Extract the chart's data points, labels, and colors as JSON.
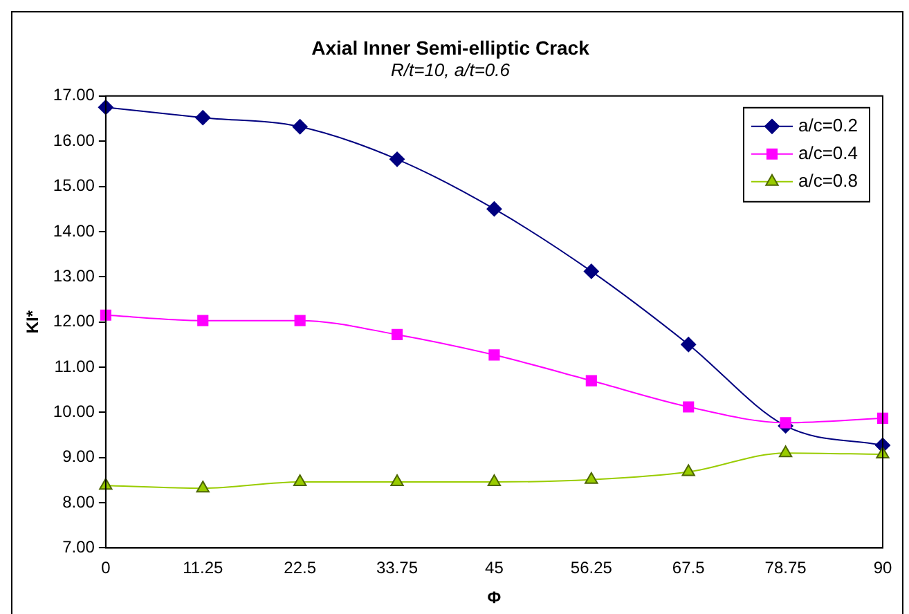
{
  "chart_data": {
    "type": "line",
    "title": "Axial Inner Semi-elliptic Crack",
    "subtitle": "R/t=10, a/t=0.6",
    "xlabel": "Φ",
    "ylabel": "KI*",
    "categories": [
      "0",
      "11.25",
      "22.5",
      "33.75",
      "45",
      "56.25",
      "67.5",
      "78.75",
      "90"
    ],
    "series": [
      {
        "name": "a/c=0.2",
        "color": "#000080",
        "marker": "diamond",
        "values": [
          16.75,
          16.52,
          16.32,
          15.6,
          14.5,
          13.12,
          11.5,
          9.7,
          9.27
        ]
      },
      {
        "name": "a/c=0.4",
        "color": "#ff00ff",
        "marker": "square",
        "values": [
          12.15,
          12.03,
          12.03,
          11.72,
          11.27,
          10.7,
          10.12,
          9.77,
          9.87
        ]
      },
      {
        "name": "a/c=0.8",
        "color": "#99cc00",
        "marker": "triangle",
        "values": [
          8.38,
          8.32,
          8.46,
          8.46,
          8.46,
          8.51,
          8.68,
          9.1,
          9.07
        ]
      }
    ],
    "ylim": [
      7,
      17
    ],
    "yticks": [
      {
        "value": 7,
        "label": "7.00"
      },
      {
        "value": 8,
        "label": "8.00"
      },
      {
        "value": 9,
        "label": "9.00"
      },
      {
        "value": 10,
        "label": "10.00"
      },
      {
        "value": 11,
        "label": "11.00"
      },
      {
        "value": 12,
        "label": "12.00"
      },
      {
        "value": 13,
        "label": "13.00"
      },
      {
        "value": 14,
        "label": "14.00"
      },
      {
        "value": 15,
        "label": "15.00"
      },
      {
        "value": 16,
        "label": "16.00"
      },
      {
        "value": 17,
        "label": "17.00"
      }
    ],
    "grid": false,
    "legend": "top right",
    "line_style": "solid"
  }
}
